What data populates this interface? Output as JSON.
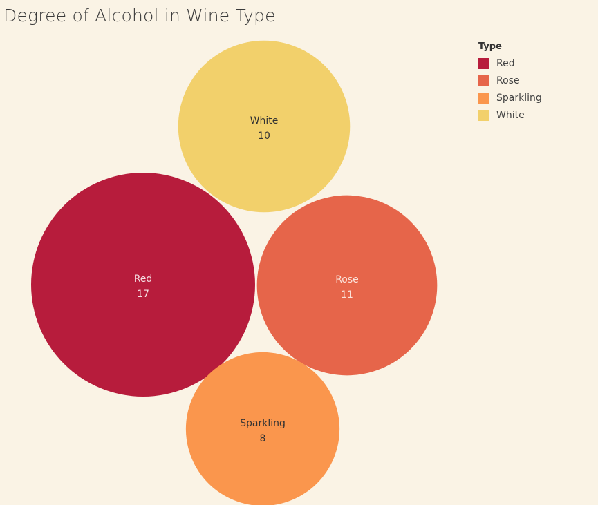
{
  "title": "Degree of Alcohol in Wine Type",
  "legend": {
    "title": "Type",
    "items": [
      {
        "label": "Red",
        "color": "#b71c3c"
      },
      {
        "label": "Rose",
        "color": "#e6654a"
      },
      {
        "label": "Sparkling",
        "color": "#fa964d"
      },
      {
        "label": "White",
        "color": "#f2d06b"
      }
    ]
  },
  "chart_data": {
    "type": "bubble",
    "title": "Degree of Alcohol in Wine Type",
    "legend_title": "Type",
    "legend_position": "top-right",
    "bubbles": [
      {
        "category": "White",
        "value": 10,
        "color": "#f2d06b",
        "label_color": "#333333"
      },
      {
        "category": "Red",
        "value": 17,
        "color": "#b71c3c",
        "label_color": "#f5dfe3"
      },
      {
        "category": "Rose",
        "value": 11,
        "color": "#e6654a",
        "label_color": "#fbe2d9"
      },
      {
        "category": "Sparkling",
        "value": 8,
        "color": "#fa964d",
        "label_color": "#333333"
      }
    ]
  }
}
